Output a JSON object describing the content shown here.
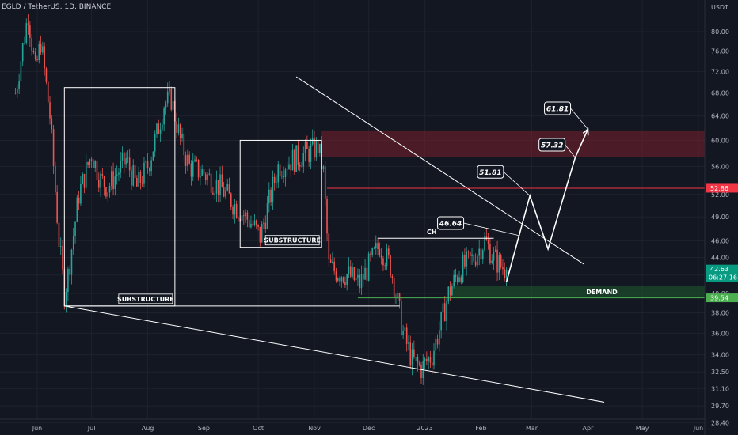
{
  "header": {
    "title": "EGLD / TetherUS, 1D, BINANCE"
  },
  "colors": {
    "background": "#131722",
    "grid": "#1e222d",
    "up": "#26a69a",
    "down": "#ef5350",
    "supply_zone": "#7a1f2b",
    "demand_zone": "#1b4d2a",
    "resistance_line": "#f23645",
    "demand_line": "#4caf50",
    "drawing": "#ffffff"
  },
  "chart_data": {
    "type": "candlestick",
    "y_axis": {
      "currency": "USDT",
      "ticks": [
        "80.00",
        "76.00",
        "72.00",
        "68.00",
        "64.00",
        "60.00",
        "56.00",
        "52.00",
        "49.00",
        "46.00",
        "44.00",
        "42.00",
        "40.00",
        "38.00",
        "36.00",
        "34.00",
        "32.50",
        "31.10",
        "29.70",
        "28.40"
      ],
      "log_scale": true,
      "range": [
        27.5,
        87
      ]
    },
    "x_axis": {
      "ticks": [
        "Jun",
        "Jul",
        "Aug",
        "Sep",
        "Oct",
        "Nov",
        "Dec",
        "2023",
        "Feb",
        "Mar",
        "Apr",
        "May",
        "Jun"
      ]
    },
    "price_path": [
      {
        "date": "2022-05-20",
        "price": 68
      },
      {
        "date": "2022-05-27",
        "price": 84
      },
      {
        "date": "2022-05-31",
        "price": 72
      },
      {
        "date": "2022-06-03",
        "price": 78
      },
      {
        "date": "2022-06-08",
        "price": 64
      },
      {
        "date": "2022-06-13",
        "price": 46
      },
      {
        "date": "2022-06-16",
        "price": 40
      },
      {
        "date": "2022-06-18",
        "price": 42
      },
      {
        "date": "2022-06-24",
        "price": 52
      },
      {
        "date": "2022-07-01",
        "price": 58
      },
      {
        "date": "2022-07-06",
        "price": 54
      },
      {
        "date": "2022-07-10",
        "price": 53
      },
      {
        "date": "2022-07-20",
        "price": 57
      },
      {
        "date": "2022-07-26",
        "price": 53
      },
      {
        "date": "2022-08-01",
        "price": 56
      },
      {
        "date": "2022-08-06",
        "price": 61
      },
      {
        "date": "2022-08-10",
        "price": 66
      },
      {
        "date": "2022-08-14",
        "price": 67
      },
      {
        "date": "2022-08-19",
        "price": 60
      },
      {
        "date": "2022-08-24",
        "price": 56
      },
      {
        "date": "2022-09-01",
        "price": 55
      },
      {
        "date": "2022-09-10",
        "price": 53
      },
      {
        "date": "2022-09-20",
        "price": 50
      },
      {
        "date": "2022-09-28",
        "price": 48
      },
      {
        "date": "2022-10-02",
        "price": 46.5
      },
      {
        "date": "2022-10-07",
        "price": 51
      },
      {
        "date": "2022-10-12",
        "price": 56
      },
      {
        "date": "2022-10-20",
        "price": 57
      },
      {
        "date": "2022-10-28",
        "price": 58
      },
      {
        "date": "2022-11-03",
        "price": 59
      },
      {
        "date": "2022-11-06",
        "price": 55
      },
      {
        "date": "2022-11-09",
        "price": 43
      },
      {
        "date": "2022-11-12",
        "price": 42.5
      },
      {
        "date": "2022-11-20",
        "price": 42
      },
      {
        "date": "2022-11-26",
        "price": 41
      },
      {
        "date": "2022-12-01",
        "price": 43
      },
      {
        "date": "2022-12-07",
        "price": 45.5
      },
      {
        "date": "2022-12-13",
        "price": 43
      },
      {
        "date": "2022-12-17",
        "price": 39
      },
      {
        "date": "2022-12-20",
        "price": 36
      },
      {
        "date": "2022-12-25",
        "price": 33.5
      },
      {
        "date": "2022-12-30",
        "price": 32.8
      },
      {
        "date": "2023-01-05",
        "price": 34
      },
      {
        "date": "2023-01-10",
        "price": 37
      },
      {
        "date": "2023-01-14",
        "price": 40
      },
      {
        "date": "2023-01-20",
        "price": 42.5
      },
      {
        "date": "2023-01-28",
        "price": 44
      },
      {
        "date": "2023-02-03",
        "price": 46
      },
      {
        "date": "2023-02-08",
        "price": 44
      },
      {
        "date": "2023-02-12",
        "price": 43
      },
      {
        "date": "2023-02-15",
        "price": 42.63
      }
    ],
    "substructure_boxes": [
      {
        "label": "SUBSTRUCTURE",
        "from": "2022-06-16",
        "to": "2022-08-16",
        "high": 69,
        "low": 38.7
      },
      {
        "label": "SUBSTRUCTURE",
        "from": "2022-09-21",
        "to": "2022-11-05",
        "high": 60,
        "low": 45.2
      }
    ],
    "supply_zone": {
      "from": "2022-11-05",
      "to": "2023-06-30",
      "top": 61.6,
      "bottom": 57.4
    },
    "demand_zone": {
      "from": "2023-01-15",
      "to": "2023-06-30",
      "top": 40.8,
      "bottom": 39.54,
      "label": "DEMAND"
    },
    "demand_line": {
      "from": "2022-11-25",
      "price": 39.54
    },
    "resistance_line": {
      "from": "2022-11-08",
      "price": 52.86
    },
    "ch_line": {
      "from": "2022-12-06",
      "to": "2023-02-08",
      "price": 46.3,
      "label": "CH"
    },
    "low_line": {
      "from": "2022-06-16",
      "to": "2022-12-18",
      "price": 38.7
    },
    "downtrend_line": {
      "from": "2022-10-22",
      "from_price": 71,
      "to": "2023-03-30",
      "to_price": 43.2
    },
    "lower_trendline": {
      "from": "2022-06-16",
      "from_price": 38.7,
      "to": "2023-04-10",
      "to_price": 30
    },
    "projection_path": [
      {
        "date": "2023-02-15",
        "price": 41.2
      },
      {
        "date": "2023-02-28",
        "price": 51.81
      },
      {
        "date": "2023-03-10",
        "price": 45
      },
      {
        "date": "2023-03-25",
        "price": 57.32
      },
      {
        "date": "2023-04-01",
        "price": 61.81
      }
    ],
    "targets": [
      {
        "label": "46.64",
        "box_date": "2023-01-08",
        "box_price": 48.2,
        "point_date": "2023-02-22",
        "point_price": 46.64
      },
      {
        "label": "51.81",
        "box_date": "2023-01-30",
        "box_price": 55.2,
        "point_date": "2023-02-28",
        "point_price": 51.81
      },
      {
        "label": "57.32",
        "box_date": "2023-03-05",
        "box_price": 59.3,
        "point_date": "2023-03-25",
        "point_price": 57.32
      },
      {
        "label": "61.81",
        "box_date": "2023-03-08",
        "box_price": 65.3,
        "point_date": "2023-04-01",
        "point_price": 61.81
      }
    ],
    "price_tags": [
      {
        "value": "52.86",
        "color": "#f23645"
      },
      {
        "value": "42.63",
        "sub": "06:27:16",
        "color": "#089981"
      },
      {
        "value": "39.54",
        "color": "#4caf50"
      }
    ]
  }
}
